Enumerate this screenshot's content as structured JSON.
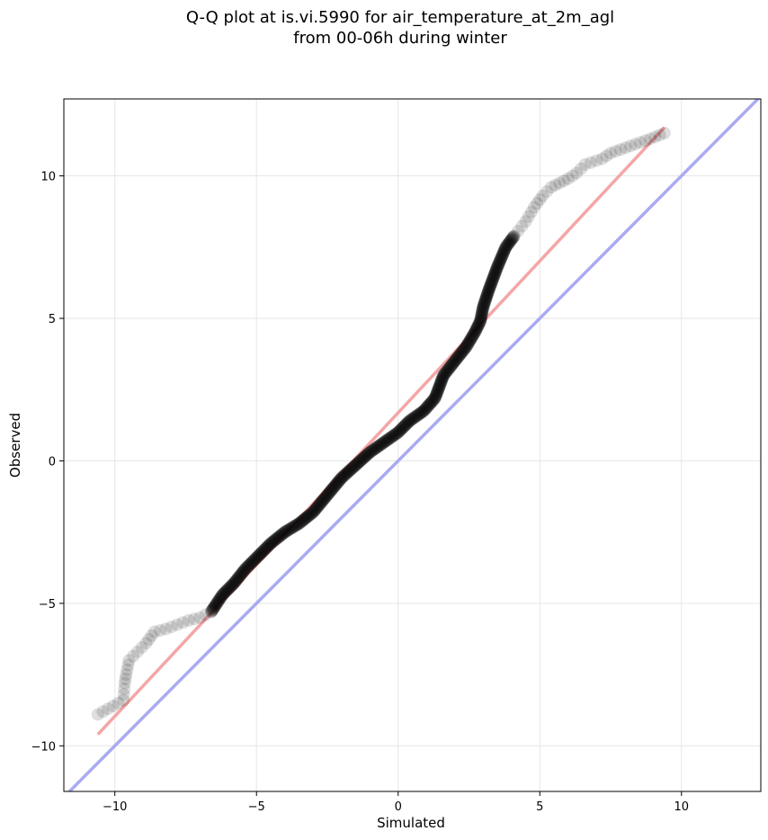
{
  "chart_data": {
    "type": "scatter",
    "title": "Q-Q plot at is.vi.5990 for air_temperature_at_2m_agl",
    "subtitle": "from 00-06h during winter",
    "xlabel": "Simulated",
    "ylabel": "Observed",
    "xlim": [
      -11.8,
      12.8
    ],
    "ylim": [
      -11.6,
      12.7
    ],
    "xticks": [
      -10,
      -5,
      0,
      5,
      10
    ],
    "yticks": [
      -10,
      -5,
      0,
      5,
      10
    ],
    "xtick_labels": [
      "−10",
      "−5",
      "0",
      "5",
      "10"
    ],
    "ytick_labels": [
      "−10",
      "−5",
      "0",
      "5",
      "10"
    ],
    "grid": true,
    "colors": {
      "points": "#000000",
      "fit_line": "#f4a6a6",
      "identity_line": "#aaaaf2",
      "grid": "#e6e6e6"
    },
    "fit_line": {
      "x": [
        -10.6,
        9.4
      ],
      "y": [
        -9.6,
        11.7
      ]
    },
    "identity_line": {
      "x": [
        -11.8,
        12.8
      ],
      "y": [
        -11.8,
        12.8
      ]
    },
    "quantile_curve": {
      "x": [
        -10.6,
        -9.7,
        -9.65,
        -9.6,
        -9.5,
        -9.2,
        -8.9,
        -8.6,
        -8.2,
        -7.8,
        -7.4,
        -7.0,
        -6.6,
        -6.2,
        -5.8,
        -5.4,
        -5.0,
        -4.5,
        -4.0,
        -3.5,
        -3.0,
        -2.5,
        -2.0,
        -1.5,
        -1.0,
        -0.5,
        0.0,
        0.4,
        0.9,
        1.3,
        1.6,
        2.0,
        2.4,
        2.7,
        2.9,
        3.0,
        3.2,
        3.5,
        3.8,
        4.1,
        4.5,
        4.8,
        5.1,
        5.4,
        5.7,
        6.0,
        6.3,
        6.6,
        7.2,
        7.5,
        8.9,
        9.4
      ],
      "y": [
        -8.9,
        -8.4,
        -7.8,
        -7.5,
        -7.0,
        -6.7,
        -6.4,
        -6.0,
        -5.9,
        -5.75,
        -5.6,
        -5.5,
        -5.3,
        -4.7,
        -4.3,
        -3.8,
        -3.4,
        -2.9,
        -2.5,
        -2.2,
        -1.8,
        -1.2,
        -0.6,
        -0.15,
        0.3,
        0.65,
        1.0,
        1.4,
        1.75,
        2.2,
        3.0,
        3.5,
        4.0,
        4.5,
        4.9,
        5.4,
        6.0,
        6.8,
        7.5,
        7.9,
        8.4,
        8.9,
        9.3,
        9.6,
        9.75,
        9.9,
        10.1,
        10.4,
        10.6,
        10.8,
        11.3,
        11.5
      ]
    }
  }
}
